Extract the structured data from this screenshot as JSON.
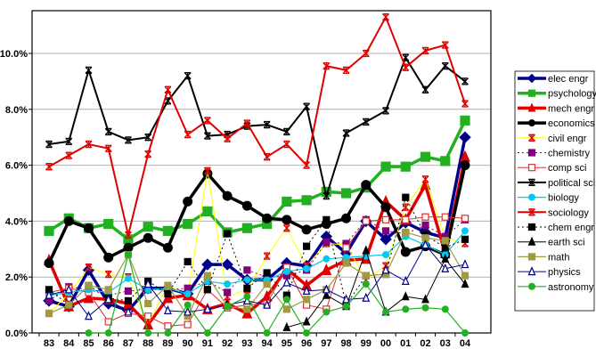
{
  "chart_data": {
    "type": "line",
    "title": "",
    "xlabel": "",
    "ylabel": "",
    "x": [
      "83",
      "84",
      "85",
      "86",
      "87",
      "88",
      "89",
      "90",
      "91",
      "92",
      "93",
      "94",
      "95",
      "96",
      "97",
      "98",
      "99",
      "00",
      "01",
      "02",
      "03",
      "04"
    ],
    "ylim": [
      0,
      11.5
    ],
    "yticks": [
      0,
      2,
      4,
      6,
      8,
      10
    ],
    "ytick_labels": [
      "0.0%",
      "2.0%",
      "4.0%",
      "6.0%",
      "8.0%",
      "10.0%"
    ],
    "grid": true,
    "legend_position": "right",
    "series": [
      {
        "name": "elec engr",
        "color": "#00008b",
        "width": 3.5,
        "marker": "diamond",
        "fill": true,
        "dash": "",
        "values": [
          1.15,
          0.95,
          2.25,
          1.05,
          0.8,
          1.6,
          1.6,
          1.4,
          2.45,
          2.45,
          1.9,
          1.9,
          2.5,
          2.4,
          3.45,
          2.85,
          4.0,
          3.35,
          3.95,
          3.6,
          3.4,
          7.0
        ]
      },
      {
        "name": "psychology",
        "color": "#22b022",
        "width": 3.5,
        "marker": "square",
        "fill": true,
        "dash": "",
        "values": [
          3.65,
          4.1,
          3.75,
          3.9,
          3.35,
          3.8,
          3.65,
          3.9,
          4.35,
          3.6,
          3.75,
          3.9,
          4.7,
          4.75,
          5.05,
          5.0,
          5.2,
          5.95,
          5.95,
          6.3,
          6.15,
          7.6
        ]
      },
      {
        "name": "mech engr",
        "color": "#e00000",
        "width": 3.5,
        "marker": "triangle",
        "fill": true,
        "dash": "",
        "values": [
          2.6,
          0.95,
          1.25,
          1.2,
          1.05,
          0.3,
          1.25,
          1.35,
          0.85,
          1.05,
          0.7,
          1.3,
          2.3,
          1.7,
          2.25,
          2.6,
          2.65,
          4.7,
          4.05,
          5.3,
          2.85,
          6.3
        ]
      },
      {
        "name": "economics",
        "color": "#000000",
        "width": 3.5,
        "marker": "circle",
        "fill": true,
        "dash": "",
        "values": [
          2.5,
          4.0,
          3.75,
          2.7,
          3.05,
          3.4,
          3.05,
          4.7,
          5.7,
          4.9,
          4.55,
          4.1,
          4.05,
          3.7,
          3.9,
          4.1,
          5.3,
          4.5,
          2.9,
          3.1,
          2.8,
          6.0
        ]
      },
      {
        "name": "civil engr",
        "color": "#ffff00",
        "width": 1,
        "marker": "x",
        "fill": true,
        "dash": "",
        "values": [
          0.7,
          1.4,
          2.35,
          2.1,
          2.0,
          0.3,
          1.7,
          1.35,
          5.8,
          1.3,
          1.55,
          2.75,
          3.75,
          2.4,
          3.2,
          3.15,
          1.9,
          2.4,
          4.5,
          5.5,
          3.4,
          3.2
        ]
      },
      {
        "name": "chemistry",
        "color": "#800080",
        "width": 1,
        "marker": "square",
        "fill": true,
        "dash": "2,3",
        "values": [
          1.15,
          1.65,
          1.55,
          1.35,
          1.5,
          1.55,
          1.55,
          1.6,
          1.85,
          1.45,
          2.25,
          2.0,
          2.05,
          2.25,
          3.25,
          3.2,
          4.05,
          3.65,
          3.55,
          3.85,
          3.45,
          4.05
        ]
      },
      {
        "name": "comp sci",
        "color": "#e03030",
        "width": 1,
        "marker": "square",
        "fill": false,
        "dash": "",
        "values": [
          1.45,
          1.6,
          1.45,
          0.4,
          0.7,
          0.6,
          0.25,
          0.3,
          1.55,
          0.9,
          1.0,
          1.05,
          2.35,
          1.0,
          0.85,
          3.05,
          4.0,
          4.05,
          4.05,
          4.15,
          4.15,
          4.1
        ]
      },
      {
        "name": "political sci",
        "color": "#000000",
        "width": 2,
        "marker": "asterisk",
        "fill": true,
        "dash": "",
        "values": [
          6.75,
          6.85,
          9.4,
          7.2,
          6.9,
          7.0,
          8.3,
          9.2,
          7.05,
          7.1,
          7.4,
          7.45,
          7.2,
          8.1,
          4.9,
          7.15,
          7.55,
          7.95,
          9.85,
          8.7,
          9.55,
          9.0
        ]
      },
      {
        "name": "biology",
        "color": "#00c8f0",
        "width": 1.2,
        "marker": "circle",
        "fill": true,
        "dash": "",
        "values": [
          1.35,
          1.45,
          1.55,
          1.45,
          1.95,
          1.55,
          1.6,
          1.4,
          1.85,
          1.75,
          1.9,
          1.9,
          2.2,
          2.3,
          2.65,
          2.7,
          2.75,
          2.8,
          3.45,
          3.15,
          2.8,
          3.65
        ]
      },
      {
        "name": "sociology",
        "color": "#e00000",
        "width": 2,
        "marker": "asterisk",
        "fill": true,
        "dash": "",
        "values": [
          5.95,
          6.35,
          6.75,
          6.6,
          3.5,
          6.4,
          8.7,
          7.1,
          7.6,
          6.95,
          7.5,
          6.3,
          6.75,
          6.0,
          9.55,
          9.4,
          10.0,
          11.3,
          9.5,
          10.1,
          10.3,
          8.2
        ]
      },
      {
        "name": "chem engr",
        "color": "#000000",
        "width": 1,
        "marker": "square",
        "fill": true,
        "dash": "2,3",
        "values": [
          1.55,
          1.0,
          1.7,
          1.25,
          1.15,
          1.85,
          1.4,
          2.55,
          1.55,
          3.55,
          1.6,
          2.15,
          1.35,
          3.1,
          4.05,
          1.0,
          2.05,
          2.1,
          4.85,
          3.5,
          3.05,
          3.35
        ]
      },
      {
        "name": "earth sci",
        "color": "#000000",
        "width": 1,
        "marker": "triangle",
        "fill": true,
        "dash": "",
        "values": [
          null,
          null,
          null,
          null,
          null,
          null,
          null,
          null,
          null,
          null,
          null,
          null,
          0.2,
          0.4,
          1.35,
          0.95,
          2.95,
          0.75,
          1.3,
          1.2,
          2.65,
          1.75
        ]
      },
      {
        "name": "math",
        "color": "#a09a40",
        "width": 1.2,
        "marker": "square",
        "fill": true,
        "dash": "",
        "values": [
          0.7,
          1.0,
          1.7,
          1.55,
          2.8,
          1.05,
          1.7,
          0.6,
          2.05,
          0.95,
          0.85,
          1.75,
          0.85,
          1.2,
          1.55,
          2.5,
          2.05,
          2.1,
          3.6,
          3.4,
          3.3,
          2.05
        ]
      },
      {
        "name": "physics",
        "color": "#00008b",
        "width": 1,
        "marker": "triangle",
        "fill": false,
        "dash": "",
        "values": [
          1.35,
          1.55,
          0.6,
          1.2,
          0.75,
          1.75,
          0.8,
          0.75,
          0.85,
          1.0,
          1.15,
          1.0,
          1.8,
          1.5,
          1.55,
          1.2,
          1.25,
          2.25,
          1.85,
          3.15,
          2.3,
          2.45
        ]
      },
      {
        "name": "astronomy",
        "color": "#22b022",
        "width": 1.2,
        "marker": "circle",
        "fill": true,
        "dash": "",
        "values": [
          null,
          null,
          0.0,
          0.0,
          2.8,
          0.0,
          0.0,
          1.0,
          0.0,
          0.95,
          1.3,
          0.0,
          1.2,
          0.0,
          0.75,
          0.95,
          1.75,
          0.75,
          0.85,
          0.9,
          0.85,
          0.0
        ]
      }
    ]
  }
}
